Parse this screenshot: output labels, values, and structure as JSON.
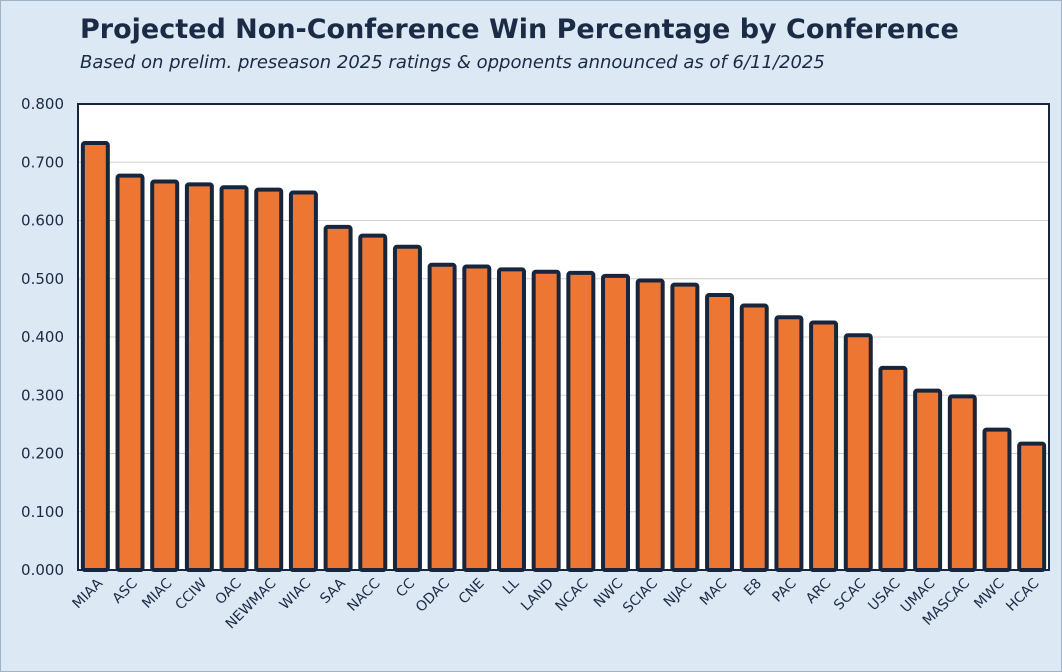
{
  "chart_data": {
    "type": "bar",
    "title": "Projected Non-Conference Win Percentage by Conference",
    "subtitle": "Based on prelim. preseason 2025 ratings & opponents announced as of 6/11/2025",
    "xlabel": "",
    "ylabel": "",
    "ylim": [
      0,
      0.8
    ],
    "yticks": [
      "0.000",
      "0.100",
      "0.200",
      "0.300",
      "0.400",
      "0.500",
      "0.600",
      "0.700",
      "0.800"
    ],
    "grid": true,
    "categories": [
      "MIAA",
      "ASC",
      "MIAC",
      "CCIW",
      "OAC",
      "NEWMAC",
      "WIAC",
      "SAA",
      "NACC",
      "CC",
      "ODAC",
      "CNE",
      "LL",
      "LAND",
      "NCAC",
      "NWC",
      "SCIAC",
      "NJAC",
      "MAC",
      "E8",
      "PAC",
      "ARC",
      "SCAC",
      "USAC",
      "UMAC",
      "MASCAC",
      "MWC",
      "HCAC"
    ],
    "values": [
      0.733,
      0.677,
      0.667,
      0.662,
      0.657,
      0.653,
      0.648,
      0.589,
      0.574,
      0.555,
      0.524,
      0.521,
      0.516,
      0.512,
      0.51,
      0.505,
      0.497,
      0.49,
      0.472,
      0.454,
      0.434,
      0.425,
      0.403,
      0.347,
      0.308,
      0.298,
      0.241,
      0.217
    ],
    "colors": {
      "bar_fill": "#ed7632",
      "bar_stroke": "#17263d",
      "plot_bg": "#ffffff",
      "page_bg": "#dce8f4",
      "grid": "#d0d0d0",
      "text": "#1b2a45"
    }
  }
}
